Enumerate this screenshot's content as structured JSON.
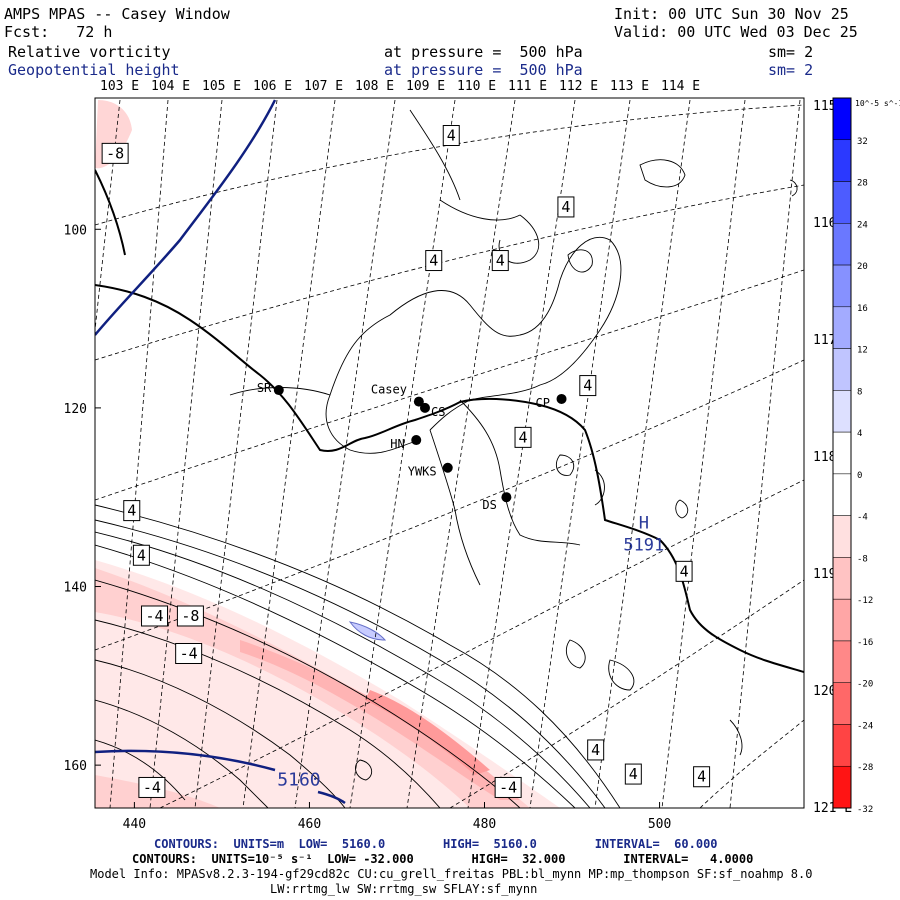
{
  "header": {
    "title": "AMPS MPAS -- Casey Window",
    "init": "Init: 00 UTC Sun 30 Nov 25",
    "fcst": "Fcst:   72 h",
    "valid": "Valid: 00 UTC Wed 03 Dec 25",
    "field1": {
      "name": "Relative vorticity",
      "level": "at pressure =  500 hPa",
      "smooth": "sm= 2"
    },
    "field2": {
      "name": "Geopotential height",
      "level": "at pressure =  500 hPa",
      "smooth": "sm= 2"
    }
  },
  "map": {
    "top_lon_labels": [
      "103 E",
      "104 E",
      "105 E",
      "106 E",
      "107 E",
      "108 E",
      "109 E",
      "110 E",
      "111 E",
      "112 E",
      "113 E",
      "114 E"
    ],
    "right_lon_labels": [
      "115 E",
      "116 E",
      "117 E",
      "118 E",
      "119 E",
      "120 E",
      "121 E"
    ],
    "x_ticks": [
      "440",
      "460",
      "480",
      "500"
    ],
    "y_ticks": [
      "100",
      "120",
      "140",
      "160"
    ],
    "stations": [
      {
        "name": "SR",
        "x": 456.5,
        "y": 118
      },
      {
        "name": "Casey",
        "x": 472.5,
        "y": 119.3
      },
      {
        "name": "CS",
        "x": 473.2,
        "y": 120
      },
      {
        "name": "HN",
        "x": 472.2,
        "y": 123.6
      },
      {
        "name": "YWKS",
        "x": 475.8,
        "y": 126.7
      },
      {
        "name": "CP",
        "x": 488.8,
        "y": 119
      },
      {
        "name": "DS",
        "x": 482.5,
        "y": 130
      }
    ],
    "contour_labels": [
      {
        "text": "-8",
        "x": 437.8,
        "y": 91.5
      },
      {
        "text": "4",
        "x": 476.2,
        "y": 89.5
      },
      {
        "text": "4",
        "x": 474.2,
        "y": 103.5
      },
      {
        "text": "4",
        "x": 481.8,
        "y": 103.5
      },
      {
        "text": "4",
        "x": 489.3,
        "y": 97.5
      },
      {
        "text": "4",
        "x": 491.8,
        "y": 117.5
      },
      {
        "text": "4",
        "x": 484.4,
        "y": 123.3
      },
      {
        "text": "4",
        "x": 439.7,
        "y": 131.5
      },
      {
        "text": "4",
        "x": 440.8,
        "y": 136.5
      },
      {
        "text": "-4",
        "x": 442.3,
        "y": 143.3
      },
      {
        "text": "-8",
        "x": 446.4,
        "y": 143.3
      },
      {
        "text": "-4",
        "x": 446.2,
        "y": 147.5
      },
      {
        "text": "-4",
        "x": 442.0,
        "y": 162.5
      },
      {
        "text": "-4",
        "x": 482.7,
        "y": 162.5
      },
      {
        "text": "4",
        "x": 502.8,
        "y": 138.3
      },
      {
        "text": "4",
        "x": 492.7,
        "y": 158.3
      },
      {
        "text": "4",
        "x": 497.0,
        "y": 161.0
      },
      {
        "text": "4",
        "x": 504.8,
        "y": 161.3
      }
    ],
    "high": {
      "symbol": "H",
      "value": "5191",
      "x": 498.2,
      "y": 133.5
    },
    "height_label": {
      "text": "5160",
      "x": 458.8,
      "y": 162.3
    }
  },
  "colorbar": {
    "unit": "10^-5 s^-1",
    "labels": [
      "32",
      "28",
      "24",
      "20",
      "16",
      "12",
      "8",
      "4",
      "0",
      "-4",
      "-8",
      "-12",
      "-16",
      "-20",
      "-24",
      "-28",
      "-32"
    ],
    "colors": [
      "#0000ff",
      "#2b39ff",
      "#4d5cff",
      "#6a78ff",
      "#8691ff",
      "#a3abff",
      "#c0c5ff",
      "#dde0ff",
      "#ffffff",
      "#ffffff",
      "#ffe0e0",
      "#ffc3c3",
      "#ffa6a6",
      "#ff8888",
      "#ff6868",
      "#ff4444",
      "#ff1414"
    ]
  },
  "footer": {
    "line1": "CONTOURS:  UNITS=m  LOW=  5160.0        HIGH=  5160.0        INTERVAL=  60.000",
    "line2": "CONTOURS:  UNITS=10⁻⁵ s⁻¹  LOW= -32.000        HIGH=  32.000        INTERVAL=   4.0000",
    "line3": "Model Info: MPASv8.2.3-194-gf29cd82c CU:cu_grell_freitas PBL:bl_mynn MP:mp_thompson SF:sf_noahmp 8.0",
    "line4": "LW:rrtmg_lw SW:rrtmg_sw SFLAY:sf_mynn"
  }
}
